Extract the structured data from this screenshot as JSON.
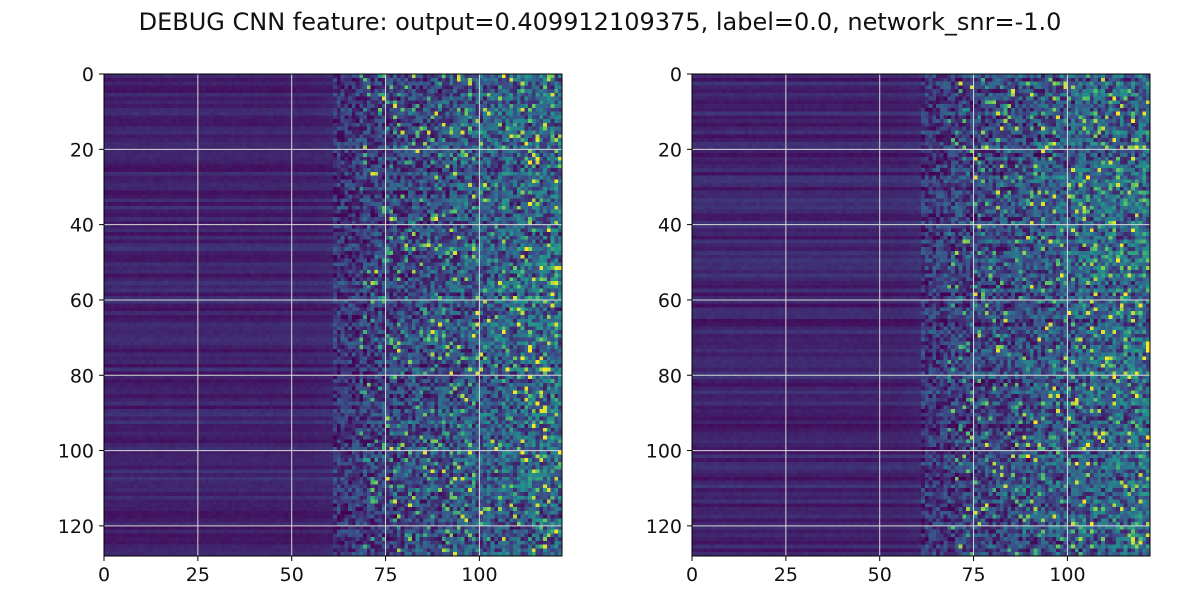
{
  "title": "DEBUG CNN feature: output=0.409912109375, label=0.0, network_snr=-1.0",
  "chart_data": [
    {
      "type": "heatmap",
      "panel": "left",
      "xlim": [
        0,
        122
      ],
      "ylim": [
        128,
        0
      ],
      "xticks": [
        0,
        25,
        50,
        75,
        100
      ],
      "yticks": [
        0,
        20,
        40,
        60,
        80,
        100,
        120
      ],
      "grid": true,
      "colormap": "viridis",
      "pattern": "low intensity on left columns, noisy bright cells increasing towards the right"
    },
    {
      "type": "heatmap",
      "panel": "right",
      "xlim": [
        0,
        122
      ],
      "ylim": [
        128,
        0
      ],
      "xticks": [
        0,
        25,
        50,
        75,
        100
      ],
      "yticks": [
        0,
        20,
        40,
        60,
        80,
        100,
        120
      ],
      "grid": true,
      "colormap": "viridis",
      "pattern": "low intensity on left columns, noisy bright cells increasing towards the right"
    }
  ],
  "colors": {
    "viridis_low": "#440154",
    "viridis_mid": "#21918c",
    "viridis_high": "#fde725",
    "grid": "#d9d9d9"
  }
}
